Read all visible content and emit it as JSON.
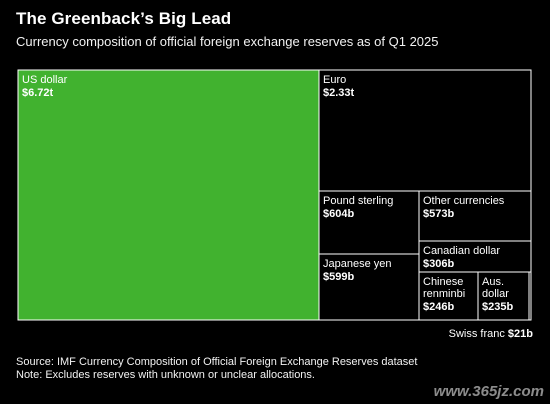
{
  "header": {
    "title": "The Greenback’s Big Lead",
    "subtitle": "Currency composition of official foreign exchange reserves as of Q1 2025"
  },
  "chart_data": {
    "type": "treemap",
    "title": "The Greenback’s Big Lead",
    "subtitle": "Currency composition of official foreign exchange reserves as of Q1 2025",
    "unit": "USD",
    "items": [
      {
        "name": "US dollar",
        "value": 6720,
        "label": "$6.72t",
        "color": "#41b22f"
      },
      {
        "name": "Euro",
        "value": 2330,
        "label": "$2.33t",
        "color": "#000000"
      },
      {
        "name": "Pound sterling",
        "value": 604,
        "label": "$604b",
        "color": "#000000"
      },
      {
        "name": "Other currencies",
        "value": 573,
        "label": "$573b",
        "color": "#000000"
      },
      {
        "name": "Japanese yen",
        "value": 599,
        "label": "$599b",
        "color": "#000000"
      },
      {
        "name": "Canadian dollar",
        "value": 306,
        "label": "$306b",
        "color": "#000000"
      },
      {
        "name": "Chinese renminbi",
        "value": 246,
        "label": "$246b",
        "color": "#000000"
      },
      {
        "name": "Aus. dollar",
        "value": 235,
        "label": "$235b",
        "color": "#000000"
      },
      {
        "name": "Swiss franc",
        "value": 21,
        "label": "$21b",
        "color": "#000000"
      }
    ],
    "stroke_color": "#ffffff"
  },
  "annotation": {
    "swiss_label": "Swiss franc",
    "swiss_value": "$21b"
  },
  "footer": {
    "source": "Source: IMF Currency Composition of Official Foreign Exchange Reserves dataset",
    "note": "Note: Excludes reserves with unknown or unclear allocations."
  },
  "watermark": "www.365jz.com"
}
